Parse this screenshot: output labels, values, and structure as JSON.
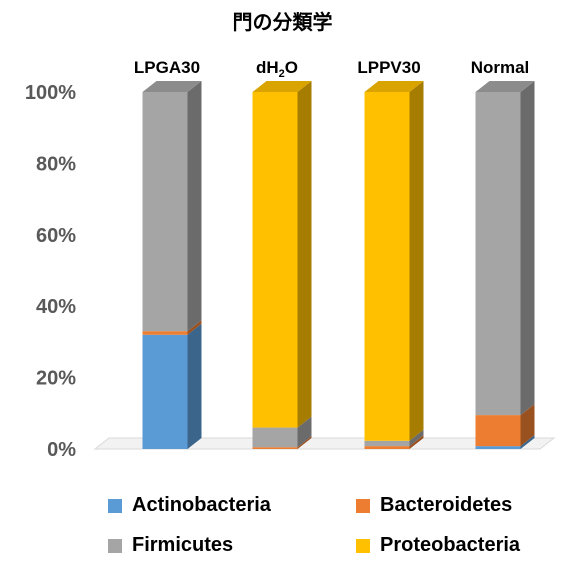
{
  "chart_data": {
    "type": "bar",
    "stacked": true,
    "title": "門の分類学",
    "categories": [
      "LPGA30",
      "dH2O",
      "LPPV30",
      "Normal"
    ],
    "category_display": [
      {
        "base": "LPGA30",
        "sub": "",
        "tail": ""
      },
      {
        "base": "dH",
        "sub": "2",
        "tail": "O"
      },
      {
        "base": "LPPV30",
        "sub": "",
        "tail": ""
      },
      {
        "base": "Normal",
        "sub": "",
        "tail": ""
      }
    ],
    "ylim": [
      0,
      100
    ],
    "yticks": [
      "0%",
      "20%",
      "40%",
      "60%",
      "80%",
      "100%"
    ],
    "series": [
      {
        "name": "Actinobacteria",
        "color": "#5B9BD5",
        "values": [
          32,
          0,
          0,
          0.8
        ]
      },
      {
        "name": "Bacteroidetes",
        "color": "#ED7D31",
        "values": [
          1,
          0.5,
          0.8,
          8.7
        ]
      },
      {
        "name": "Firmicutes",
        "color": "#A5A5A5",
        "values": [
          67,
          5.5,
          1.5,
          90.5
        ]
      },
      {
        "name": "Proteobacteria",
        "color": "#FFC000",
        "values": [
          0,
          94,
          97.7,
          0
        ]
      }
    ],
    "legend_position": "bottom",
    "grid": false
  }
}
